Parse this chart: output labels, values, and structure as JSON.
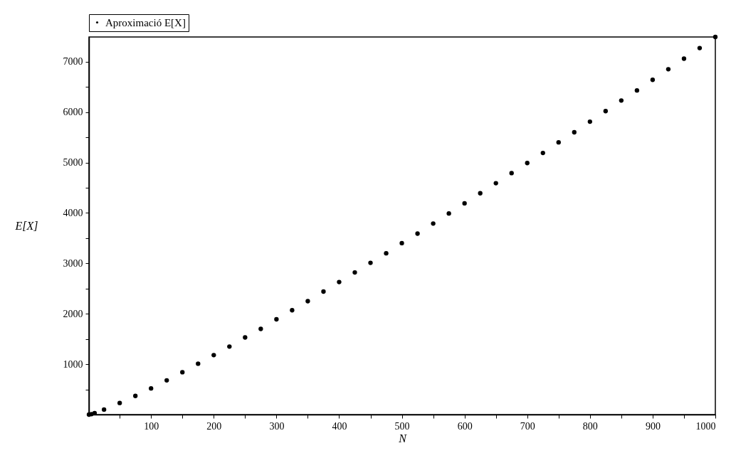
{
  "chart_data": {
    "type": "scatter",
    "xlabel": "N",
    "ylabel": "E[X]",
    "legend": "top",
    "grid": false,
    "marker": "circle",
    "series": [
      {
        "name": "Aproximació E[X]",
        "color": "#000000",
        "x": [
          1,
          5,
          10,
          25,
          50,
          75,
          100,
          125,
          150,
          175,
          200,
          225,
          250,
          275,
          300,
          325,
          350,
          375,
          400,
          425,
          450,
          475,
          500,
          525,
          550,
          575,
          600,
          625,
          650,
          675,
          700,
          725,
          750,
          775,
          800,
          825,
          850,
          875,
          900,
          925,
          950,
          975,
          1000
        ],
        "values": [
          0,
          10,
          30,
          100,
          230,
          370,
          520,
          680,
          840,
          1010,
          1180,
          1350,
          1530,
          1700,
          1890,
          2070,
          2250,
          2440,
          2630,
          2820,
          3010,
          3200,
          3400,
          3590,
          3790,
          3990,
          4190,
          4390,
          4590,
          4790,
          4990,
          5190,
          5400,
          5600,
          5810,
          6020,
          6230,
          6430,
          6640,
          6850,
          7060,
          7270,
          7490
        ]
      }
    ],
    "xlim": [
      1,
      1000
    ],
    "ylim": [
      0,
      7490
    ],
    "xticks": [
      {
        "value": 50,
        "label": null
      },
      100,
      {
        "value": 150,
        "label": null
      },
      200,
      {
        "value": 250,
        "label": null
      },
      300,
      {
        "value": 350,
        "label": null
      },
      400,
      {
        "value": 450,
        "label": null
      },
      500,
      {
        "value": 550,
        "label": null
      },
      600,
      {
        "value": 650,
        "label": null
      },
      700,
      {
        "value": 750,
        "label": null
      },
      800,
      {
        "value": 850,
        "label": null
      },
      900,
      {
        "value": 950,
        "label": null
      },
      1000
    ],
    "yticks": [
      {
        "value": 500,
        "label": null
      },
      1000,
      {
        "value": 1500,
        "label": null
      },
      2000,
      {
        "value": 2500,
        "label": null
      },
      3000,
      {
        "value": 3500,
        "label": null
      },
      4000,
      {
        "value": 4500,
        "label": null
      },
      5000,
      {
        "value": 5500,
        "label": null
      },
      6000,
      {
        "value": 6500,
        "label": null
      },
      7000
    ]
  }
}
